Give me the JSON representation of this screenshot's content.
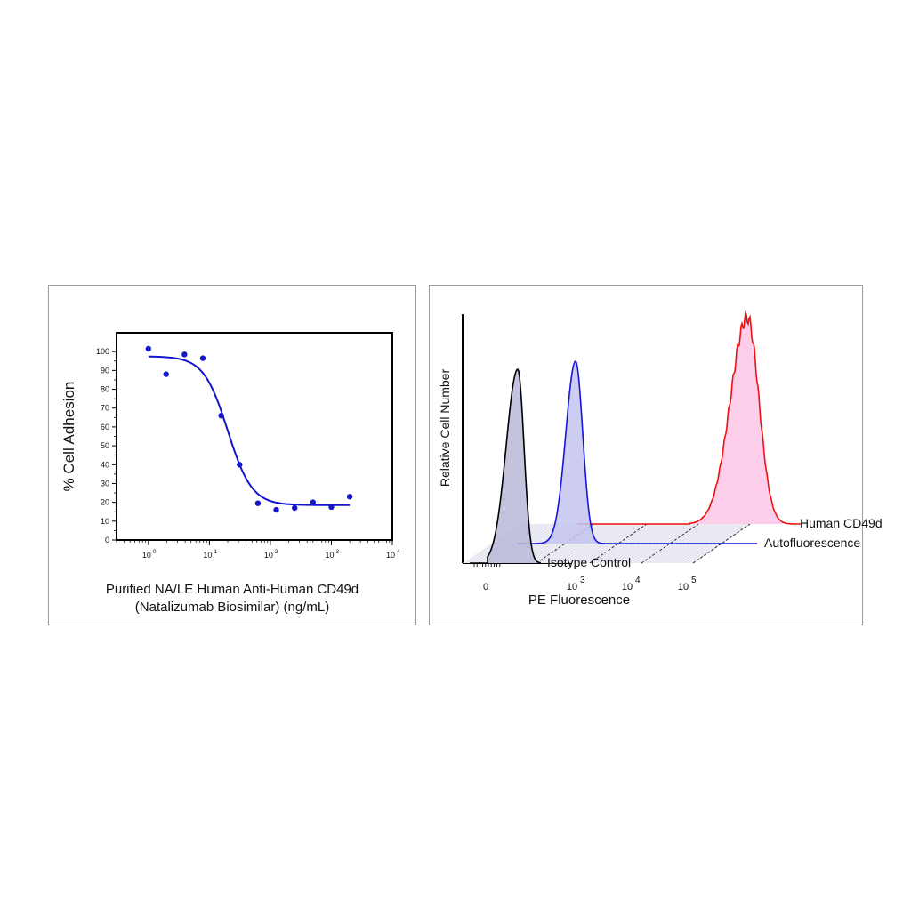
{
  "chart_data": [
    {
      "type": "scatter",
      "fit": "sigmoidal-dose-response",
      "title": "",
      "ylabel": "% Cell Adhesion",
      "xlabel_line1": "Purified NA/LE Human Anti-Human CD49d",
      "xlabel_line2": "(Natalizumab Biosimilar) (ng/mL)",
      "x_scale": "log",
      "xlim": [
        0.3,
        10000
      ],
      "ylim": [
        0,
        110
      ],
      "y_ticks": [
        0,
        10,
        20,
        30,
        40,
        50,
        60,
        70,
        80,
        90,
        100
      ],
      "x_ticks": [
        {
          "value": 1,
          "base": "10",
          "exp": "0"
        },
        {
          "value": 10,
          "base": "10",
          "exp": "1"
        },
        {
          "value": 100,
          "base": "10",
          "exp": "2"
        },
        {
          "value": 1000,
          "base": "10",
          "exp": "3"
        },
        {
          "value": 10000,
          "base": "10",
          "exp": "4"
        }
      ],
      "points": [
        {
          "x": 1,
          "y": 101.5
        },
        {
          "x": 1.95,
          "y": 88
        },
        {
          "x": 3.9,
          "y": 98.5
        },
        {
          "x": 7.8,
          "y": 96.5
        },
        {
          "x": 15.6,
          "y": 66
        },
        {
          "x": 31.25,
          "y": 40
        },
        {
          "x": 62.5,
          "y": 19.5
        },
        {
          "x": 125,
          "y": 16
        },
        {
          "x": 250,
          "y": 17
        },
        {
          "x": 500,
          "y": 20
        },
        {
          "x": 1000,
          "y": 17.5
        },
        {
          "x": 2000,
          "y": 23
        }
      ],
      "curve": {
        "top": 97.5,
        "bottom": 18.5,
        "ec50": 20,
        "hill": 2.2
      },
      "grid": false,
      "color": "#1515cc"
    },
    {
      "type": "histogram-overlay",
      "title": "",
      "ylabel": "Relative Cell Number",
      "xlabel": "PE Fluorescence",
      "x_ticks": [
        {
          "label": "0",
          "exp": ""
        },
        {
          "label": "10",
          "exp": "3"
        },
        {
          "label": "10",
          "exp": "4"
        },
        {
          "label": "10",
          "exp": "5"
        }
      ],
      "series": [
        {
          "name": "Isotype Control",
          "color": "#000000",
          "fill": "#b8b8d8"
        },
        {
          "name": "Autofluorescence",
          "color": "#1515dd",
          "fill": "#c4c4f0"
        },
        {
          "name": "Human CD49d",
          "color": "#ee1111",
          "fill": "#fbc6e6"
        }
      ],
      "legend": "right, beside each trace"
    }
  ]
}
